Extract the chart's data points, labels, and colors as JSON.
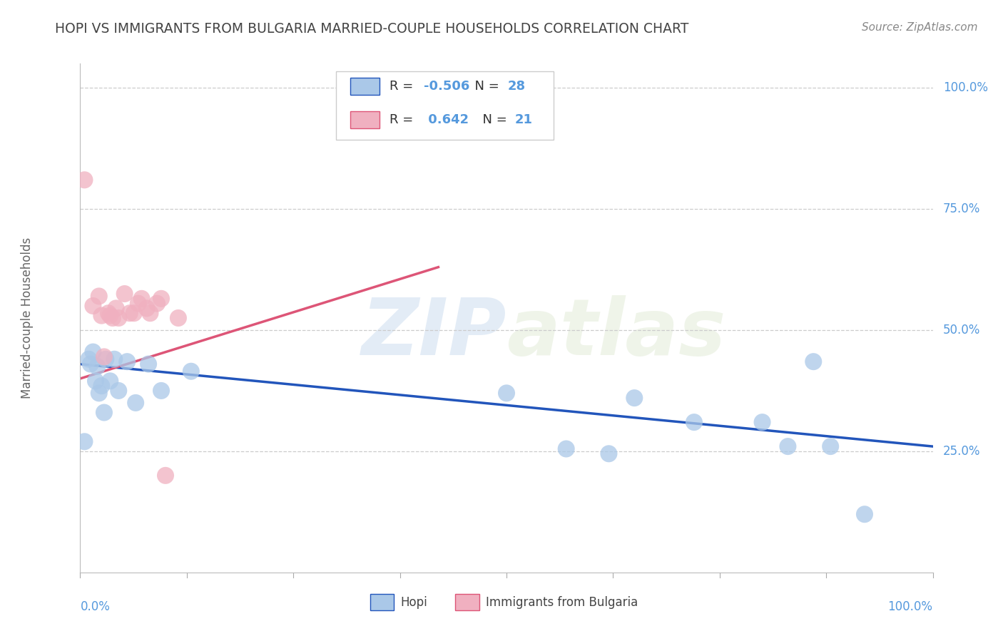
{
  "title": "HOPI VS IMMIGRANTS FROM BULGARIA MARRIED-COUPLE HOUSEHOLDS CORRELATION CHART",
  "source": "Source: ZipAtlas.com",
  "ylabel": "Married-couple Households",
  "watermark_zip": "ZIP",
  "watermark_atlas": "atlas",
  "hopi_R": -0.506,
  "hopi_N": 28,
  "bulgaria_R": 0.642,
  "bulgaria_N": 21,
  "hopi_color": "#aac8e8",
  "bulgaria_color": "#f0b0c0",
  "hopi_line_color": "#2255bb",
  "bulgaria_line_color": "#dd5577",
  "axis_color": "#5599dd",
  "grid_color": "#cccccc",
  "title_color": "#444444",
  "hopi_x": [
    0.005,
    0.01,
    0.012,
    0.015,
    0.018,
    0.02,
    0.022,
    0.025,
    0.028,
    0.03,
    0.035,
    0.04,
    0.045,
    0.055,
    0.065,
    0.08,
    0.095,
    0.13,
    0.5,
    0.57,
    0.62,
    0.65,
    0.72,
    0.8,
    0.83,
    0.86,
    0.88,
    0.92
  ],
  "hopi_y": [
    0.27,
    0.44,
    0.43,
    0.455,
    0.395,
    0.425,
    0.37,
    0.385,
    0.33,
    0.44,
    0.395,
    0.44,
    0.375,
    0.435,
    0.35,
    0.43,
    0.375,
    0.415,
    0.37,
    0.255,
    0.245,
    0.36,
    0.31,
    0.31,
    0.26,
    0.435,
    0.26,
    0.12
  ],
  "bulgaria_x": [
    0.005,
    0.015,
    0.022,
    0.025,
    0.028,
    0.033,
    0.035,
    0.038,
    0.042,
    0.045,
    0.052,
    0.058,
    0.063,
    0.068,
    0.072,
    0.078,
    0.082,
    0.09,
    0.095,
    0.1,
    0.115
  ],
  "bulgaria_y": [
    0.81,
    0.55,
    0.57,
    0.53,
    0.445,
    0.535,
    0.53,
    0.525,
    0.545,
    0.525,
    0.575,
    0.535,
    0.535,
    0.555,
    0.565,
    0.545,
    0.535,
    0.555,
    0.565,
    0.2,
    0.525
  ],
  "hopi_line_x": [
    0.0,
    1.0
  ],
  "hopi_line_y": [
    0.43,
    0.26
  ],
  "bulgaria_line_x": [
    0.0,
    0.42
  ],
  "bulgaria_line_y": [
    0.4,
    0.63
  ],
  "xlim": [
    0.0,
    1.0
  ],
  "ylim": [
    0.0,
    1.05
  ],
  "ytick_vals": [
    0.25,
    0.5,
    0.75,
    1.0
  ],
  "ytick_labels": [
    "25.0%",
    "50.0%",
    "75.0%",
    "100.0%"
  ],
  "figsize": [
    14.06,
    8.92
  ],
  "dpi": 100
}
